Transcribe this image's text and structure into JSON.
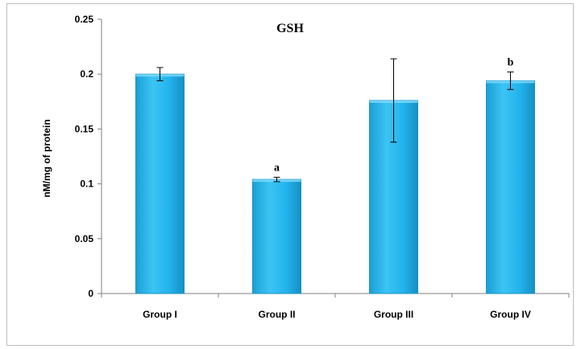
{
  "chart_data": {
    "type": "bar",
    "title": "GSH",
    "ylabel": "nM/mg of protein",
    "xlabel": "",
    "categories": [
      "Group I",
      "Group II",
      "Group III",
      "Group IV"
    ],
    "values": [
      0.2,
      0.104,
      0.176,
      0.194
    ],
    "errors": [
      0.006,
      0.002,
      0.038,
      0.008
    ],
    "annotations": [
      "",
      "a",
      "",
      "b"
    ],
    "ylim": [
      0,
      0.25
    ],
    "yticks": [
      "0",
      "0.05",
      "0.1",
      "0.15",
      "0.2",
      "0.25"
    ],
    "grid": false,
    "legend": "none",
    "bar_color": "#22b3ec",
    "bar_edge_color": "#1a8fc4"
  }
}
